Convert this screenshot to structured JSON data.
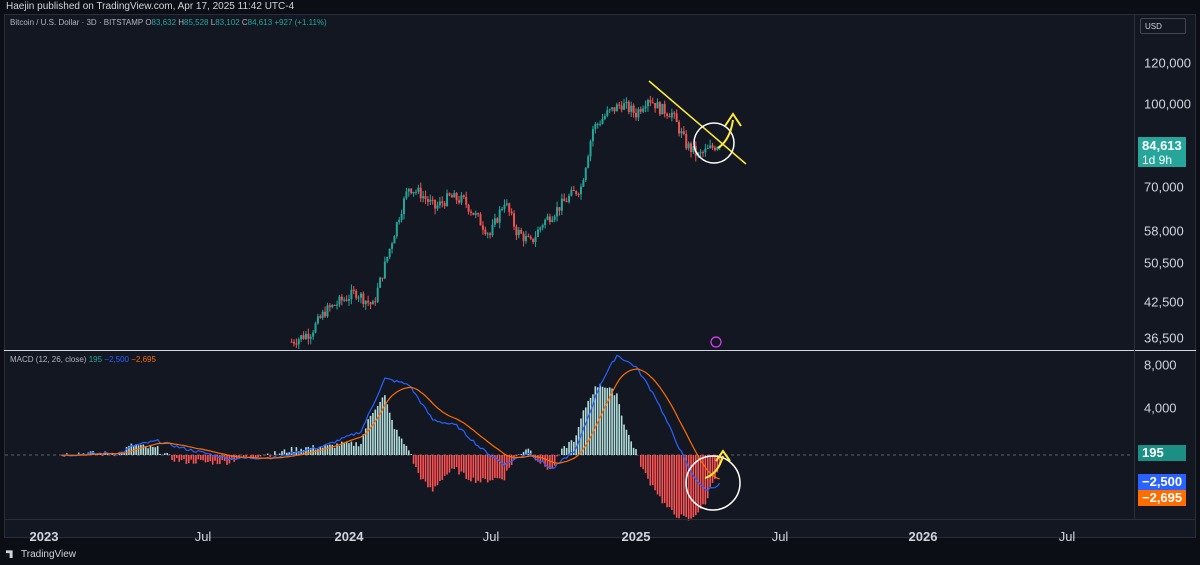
{
  "header": {
    "publisher": "Haejin published on TradingView.com, Apr 17, 2025 11:42 UTC-4"
  },
  "legend": {
    "symbol": "Bitcoin / U.S. Dollar · 3D · BITSTAMP",
    "o_label": "O",
    "o_value": "83,632",
    "h_label": "H",
    "h_value": "85,528",
    "l_label": "L",
    "l_value": "83,102",
    "c_label": "C",
    "c_value": "84,613",
    "change": "+927 (+1.11%)"
  },
  "macd_legend": {
    "name": "MACD (12, 26, close)",
    "hist": "195",
    "macd": "−2,500",
    "signal": "−2,695"
  },
  "currency_button": "USD",
  "colors": {
    "up": "#26a69a",
    "down": "#ef5350",
    "macd": "#2962ff",
    "signal": "#ff6d00",
    "hist_up": "#b2dfdb",
    "hist_down": "#ff5252",
    "annotation": "#ffeb3b",
    "circle": "#ffffff"
  },
  "last_price": {
    "value": "84,613",
    "countdown": "1d 9h"
  },
  "macd_badges": {
    "hist": "195",
    "macd": "−2,500",
    "signal": "−2,695"
  },
  "footer": {
    "brand": "TradingView"
  },
  "chart_data": [
    {
      "type": "candlestick",
      "title": "Bitcoin / U.S. Dollar · 3D · BITSTAMP",
      "y_scale": "log",
      "y_ticks": [
        "120,000",
        "100,000",
        "84,613",
        "70,000",
        "58,000",
        "50,500",
        "42,500",
        "36,500"
      ],
      "x_ticks": [
        "2023",
        "Jul",
        "2024",
        "Jul",
        "2025",
        "Jul",
        "2026",
        "Jul"
      ],
      "close_series_approx": {
        "x": [
          "2023-11",
          "2024-01",
          "2024-02",
          "2024-03",
          "2024-04",
          "2024-05",
          "2024-06",
          "2024-07",
          "2024-08",
          "2024-09",
          "2024-10",
          "2024-11",
          "2024-12",
          "2025-01",
          "2025-02",
          "2025-03",
          "2025-04"
        ],
        "y": [
          37000,
          42500,
          44000,
          65000,
          68000,
          67000,
          62000,
          66000,
          59000,
          58000,
          65000,
          96000,
          98000,
          102000,
          96000,
          83000,
          84613
        ]
      },
      "annotations": [
        "descending trendline",
        "circle around latest candles",
        "up arrow"
      ]
    },
    {
      "type": "line",
      "title": "MACD (12, 26, close)",
      "y_ticks": [
        "8,000",
        "4,000"
      ],
      "series": [
        {
          "name": "MACD",
          "last": -2500
        },
        {
          "name": "Signal",
          "last": -2695
        },
        {
          "name": "Histogram",
          "last": 195
        }
      ],
      "annotations": [
        "circle around latest MACD cross",
        "up arrow"
      ]
    }
  ]
}
